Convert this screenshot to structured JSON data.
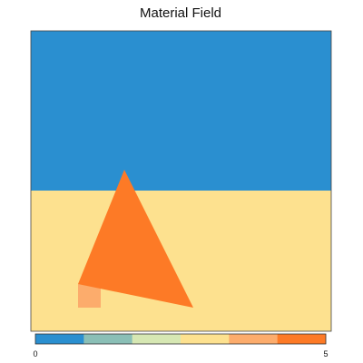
{
  "chart_data": {
    "type": "heatmap",
    "title": "Material Field",
    "xlabel": "",
    "ylabel": "",
    "grid": false,
    "legend": "bottom",
    "colorbar": {
      "min": 0,
      "max": 5,
      "tick_labels": [
        "0",
        "5"
      ],
      "colors": [
        "#2a8fd0",
        "#8abfb6",
        "#d6e7b3",
        "#fde18f",
        "#fcac6c",
        "#fd7a26"
      ]
    },
    "regions": [
      {
        "name": "upper layer",
        "value": 0,
        "color": "#2a8fd0"
      },
      {
        "name": "lower layer",
        "value": 3,
        "color": "#fde18f"
      },
      {
        "name": "triangle inclusion",
        "value": 5,
        "color": "#fd7a26"
      },
      {
        "name": "small block",
        "value": 4,
        "color": "#fcac6c"
      }
    ]
  }
}
